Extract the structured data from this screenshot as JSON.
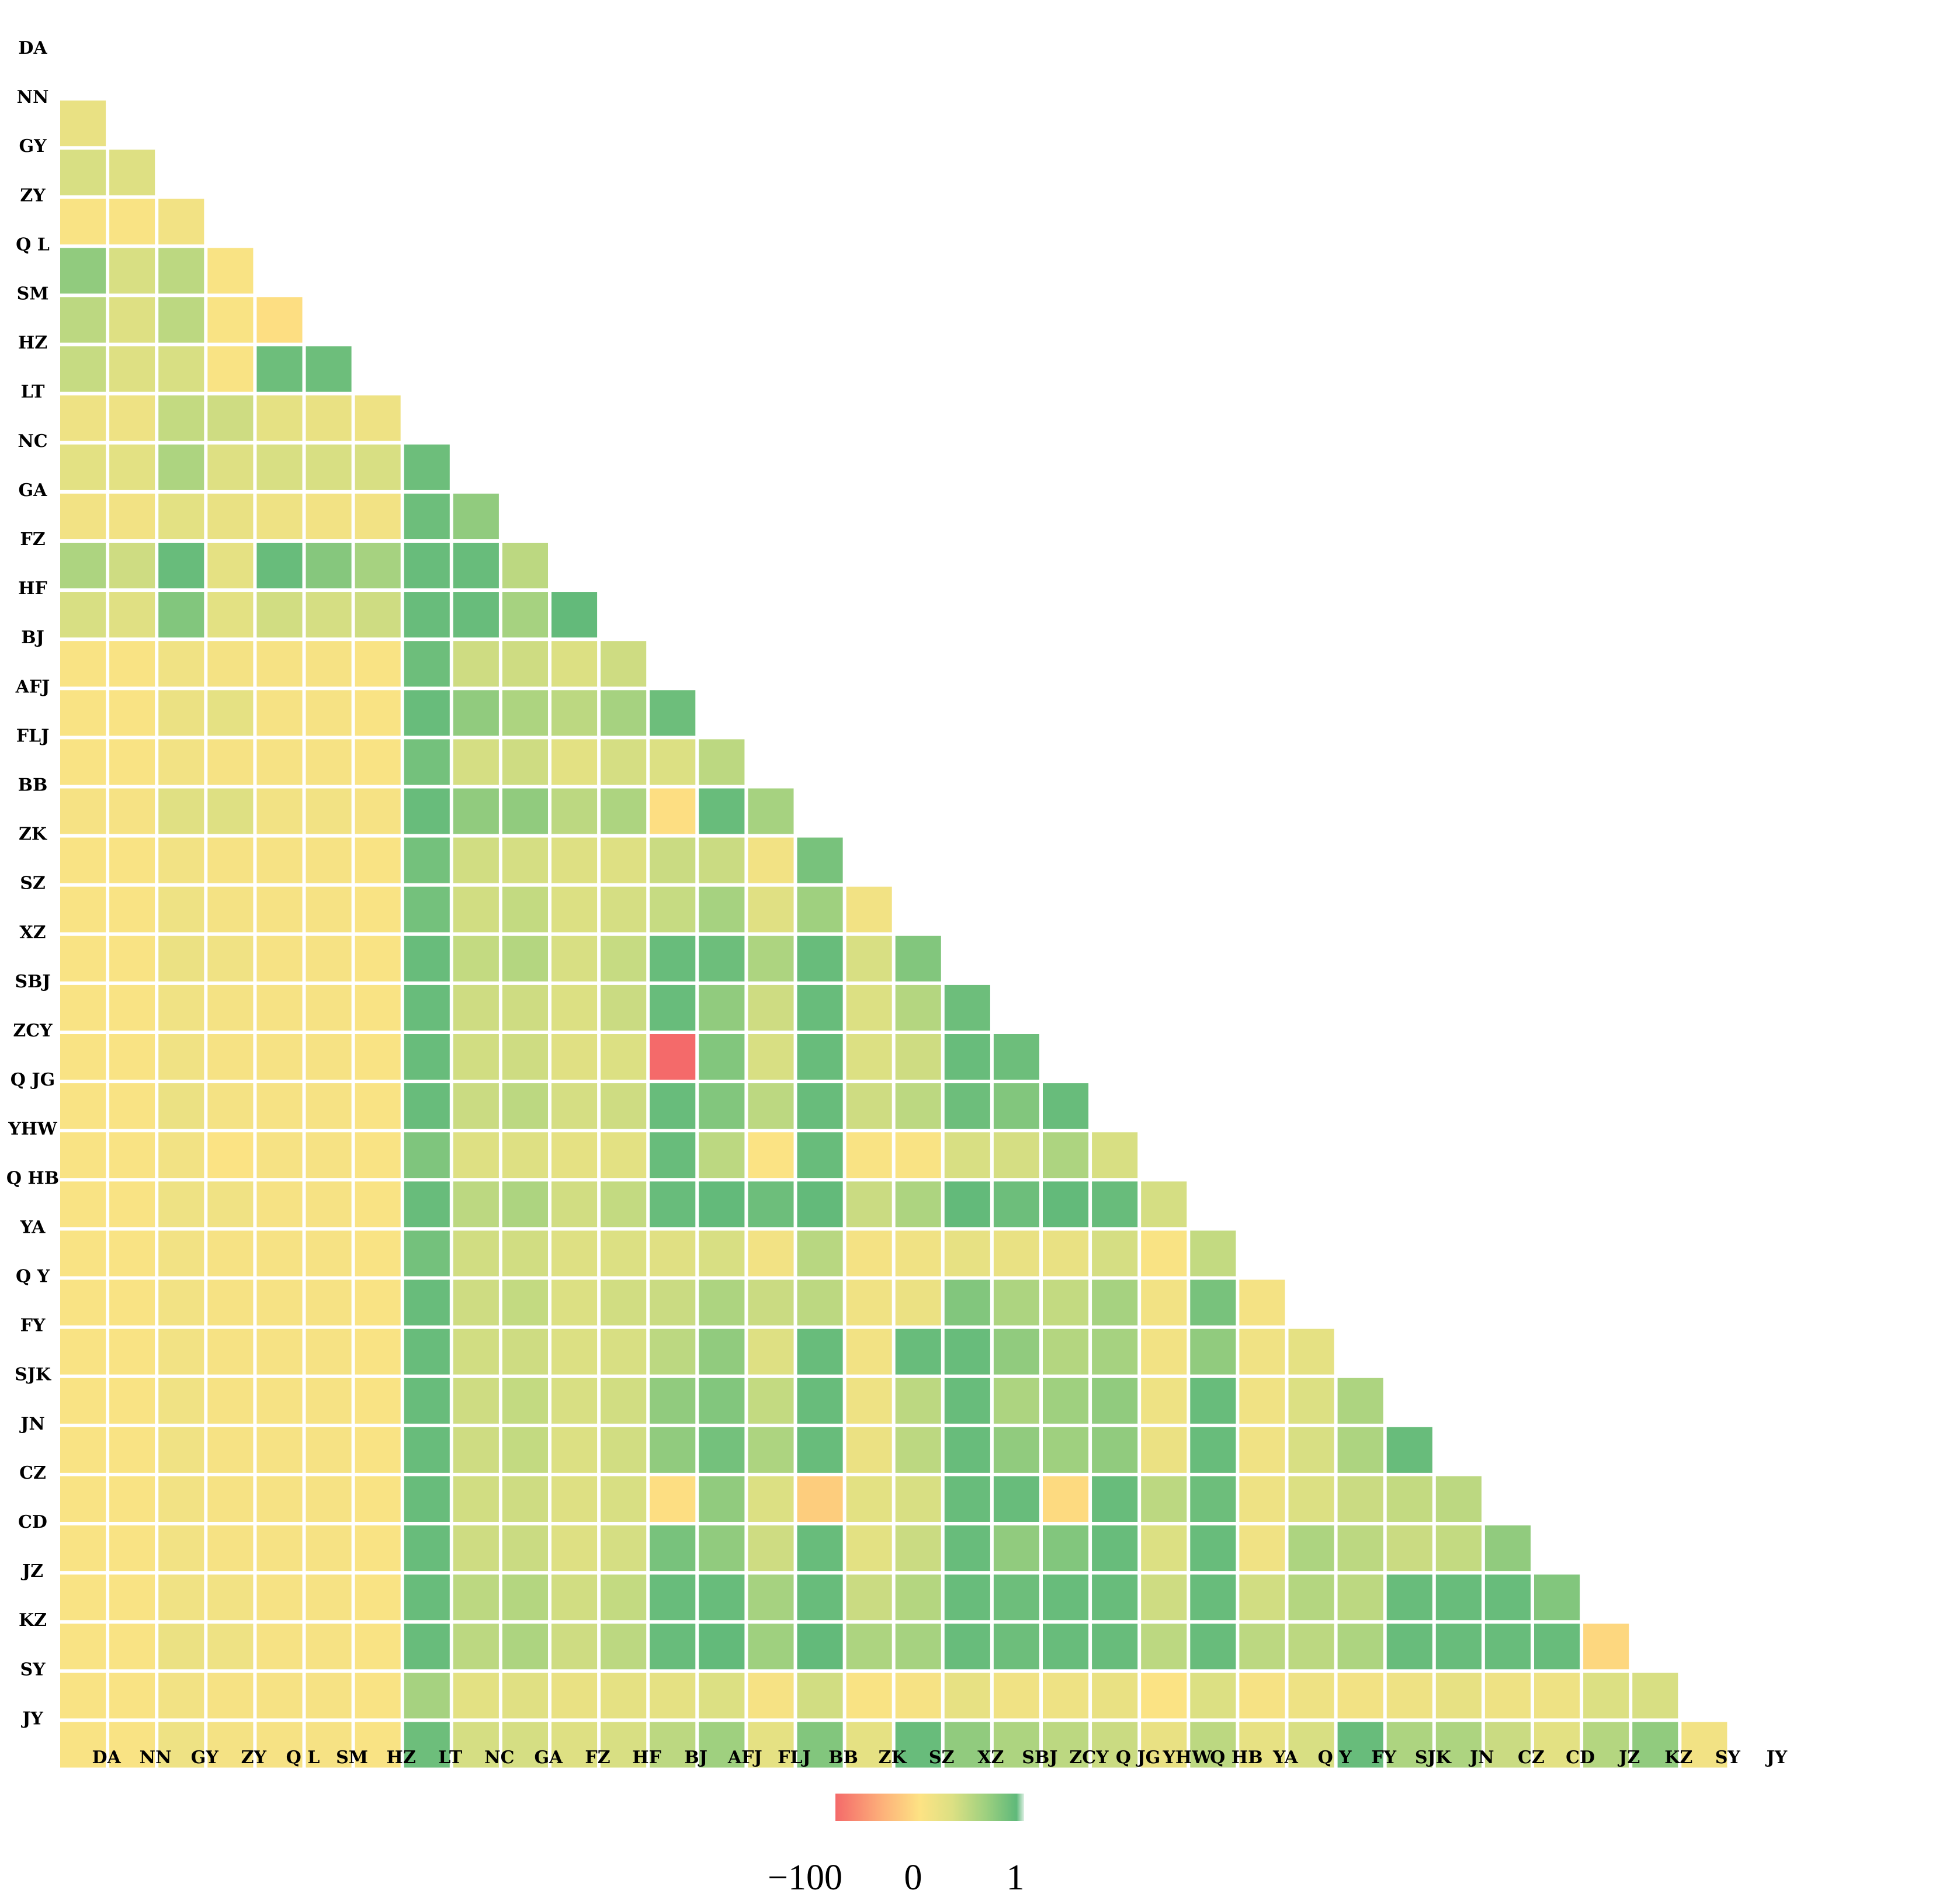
{
  "chart_data": {
    "type": "heatmap",
    "layout": "lower-triangle",
    "cell_gap_color": "#ffffff",
    "row_labels": [
      "DA",
      "NN",
      "GY",
      "ZY",
      "Q L",
      "SM",
      "HZ",
      "LT",
      "NC",
      "GA",
      "FZ",
      "HF",
      "BJ",
      "AFJ",
      "FLJ",
      "BB",
      "ZK",
      "SZ",
      "XZ",
      "SBJ",
      "ZCY",
      "Q JG",
      "YHW",
      "Q HB",
      "YA",
      "Q Y",
      "FY",
      "SJK",
      "JN",
      "CZ",
      "CD",
      "JZ",
      "KZ",
      "SY",
      "JY"
    ],
    "col_labels": [
      "DA",
      "NN",
      "GY",
      "ZY",
      "Q L",
      "SM",
      "HZ",
      "LT",
      "NC",
      "GA",
      "FZ",
      "HF",
      "BJ",
      "AFJ",
      "FLJ",
      "BB",
      "ZK",
      "SZ",
      "XZ",
      "SBJ",
      "ZCY",
      "Q JG",
      "YHW",
      "Q HB",
      "YA",
      "Q Y",
      "FY",
      "SJK",
      "JN",
      "CZ",
      "CD",
      "JZ",
      "KZ",
      "SY",
      "JY"
    ],
    "values": [
      [],
      [
        0.18
      ],
      [
        0.32,
        0.28
      ],
      [
        0.04,
        0.04,
        0.1
      ],
      [
        0.72,
        0.32,
        0.48,
        0.04
      ],
      [
        0.48,
        0.28,
        0.48,
        0.04,
        -8
      ],
      [
        0.42,
        0.28,
        0.32,
        0.04,
        0.92,
        0.92
      ],
      [
        0.14,
        0.14,
        0.44,
        0.38,
        0.22,
        0.18,
        0.14
      ],
      [
        0.24,
        0.24,
        0.56,
        0.28,
        0.32,
        0.32,
        0.32,
        0.92
      ],
      [
        0.1,
        0.1,
        0.24,
        0.18,
        0.14,
        0.1,
        0.1,
        0.92,
        0.72
      ],
      [
        0.56,
        0.38,
        0.95,
        0.22,
        0.95,
        0.78,
        0.6,
        0.95,
        0.95,
        0.48
      ],
      [
        0.32,
        0.26,
        0.8,
        0.24,
        0.36,
        0.34,
        0.38,
        0.95,
        0.95,
        0.6,
        0.98
      ],
      [
        0.04,
        0.04,
        0.12,
        0.08,
        0.06,
        0.06,
        0.04,
        0.92,
        0.38,
        0.38,
        0.3,
        0.38
      ],
      [
        0.04,
        0.04,
        0.16,
        0.22,
        0.06,
        0.06,
        0.04,
        0.95,
        0.72,
        0.56,
        0.48,
        0.6,
        0.92
      ],
      [
        0.04,
        0.04,
        0.1,
        0.06,
        0.06,
        0.06,
        0.04,
        0.88,
        0.34,
        0.38,
        0.24,
        0.34,
        0.3,
        0.48
      ],
      [
        0.06,
        0.06,
        0.26,
        0.28,
        0.1,
        0.1,
        0.06,
        0.95,
        0.72,
        0.72,
        0.48,
        0.56,
        -8,
        0.95,
        0.6
      ],
      [
        0.04,
        0.04,
        0.1,
        0.06,
        0.06,
        0.06,
        0.04,
        0.88,
        0.36,
        0.34,
        0.28,
        0.28,
        0.4,
        0.4,
        0.1,
        0.86
      ],
      [
        0.04,
        0.04,
        0.14,
        0.08,
        0.06,
        0.06,
        0.04,
        0.88,
        0.36,
        0.44,
        0.3,
        0.34,
        0.42,
        0.6,
        0.26,
        0.64,
        0.1
      ],
      [
        0.04,
        0.04,
        0.16,
        0.12,
        0.06,
        0.06,
        0.04,
        0.95,
        0.44,
        0.52,
        0.32,
        0.42,
        0.95,
        0.92,
        0.56,
        0.95,
        0.32,
        0.8
      ],
      [
        0.04,
        0.04,
        0.12,
        0.08,
        0.06,
        0.06,
        0.04,
        0.95,
        0.38,
        0.38,
        0.3,
        0.4,
        0.95,
        0.72,
        0.38,
        0.95,
        0.3,
        0.52,
        0.92
      ],
      [
        0.04,
        0.04,
        0.12,
        0.06,
        0.06,
        0.06,
        0.04,
        0.95,
        0.36,
        0.38,
        0.26,
        0.3,
        -100,
        0.8,
        0.32,
        0.95,
        0.3,
        0.38,
        0.95,
        0.92
      ],
      [
        0.04,
        0.04,
        0.16,
        0.08,
        0.06,
        0.06,
        0.04,
        0.95,
        0.4,
        0.48,
        0.34,
        0.38,
        0.95,
        0.8,
        0.48,
        0.95,
        0.38,
        0.48,
        0.92,
        0.8,
        0.95
      ],
      [
        0.04,
        0.04,
        0.1,
        0.02,
        0.06,
        0.06,
        0.04,
        0.82,
        0.28,
        0.28,
        0.22,
        0.24,
        0.95,
        0.48,
        0.02,
        0.95,
        0.04,
        0.04,
        0.32,
        0.34,
        0.56,
        0.32
      ],
      [
        0.04,
        0.04,
        0.14,
        0.12,
        0.06,
        0.06,
        0.04,
        0.95,
        0.48,
        0.56,
        0.36,
        0.44,
        0.95,
        0.98,
        0.92,
        0.98,
        0.4,
        0.56,
        0.98,
        0.92,
        0.98,
        0.95,
        0.34
      ],
      [
        0.04,
        0.04,
        0.1,
        0.06,
        0.06,
        0.06,
        0.04,
        0.88,
        0.36,
        0.36,
        0.28,
        0.3,
        0.26,
        0.32,
        0.1,
        0.5,
        0.08,
        0.12,
        0.2,
        0.18,
        0.18,
        0.34,
        0.04,
        0.44
      ],
      [
        0.04,
        0.04,
        0.1,
        0.06,
        0.06,
        0.06,
        0.04,
        0.95,
        0.38,
        0.44,
        0.3,
        0.36,
        0.4,
        0.56,
        0.4,
        0.48,
        0.12,
        0.16,
        0.8,
        0.56,
        0.44,
        0.6,
        0.1,
        0.86,
        0.08
      ],
      [
        0.04,
        0.04,
        0.1,
        0.06,
        0.06,
        0.06,
        0.04,
        0.95,
        0.36,
        0.38,
        0.3,
        0.32,
        0.48,
        0.72,
        0.28,
        0.95,
        0.1,
        0.95,
        0.95,
        0.72,
        0.52,
        0.6,
        0.1,
        0.72,
        0.12,
        0.22
      ],
      [
        0.04,
        0.04,
        0.12,
        0.06,
        0.06,
        0.06,
        0.04,
        0.95,
        0.38,
        0.44,
        0.32,
        0.36,
        0.72,
        0.8,
        0.44,
        0.95,
        0.14,
        0.48,
        0.95,
        0.56,
        0.64,
        0.72,
        0.14,
        0.95,
        0.12,
        0.3,
        0.56
      ],
      [
        0.04,
        0.04,
        0.12,
        0.06,
        0.06,
        0.06,
        0.04,
        0.95,
        0.38,
        0.44,
        0.3,
        0.36,
        0.72,
        0.88,
        0.56,
        0.95,
        0.16,
        0.48,
        0.95,
        0.72,
        0.64,
        0.72,
        0.16,
        0.95,
        0.12,
        0.32,
        0.56,
        0.95
      ],
      [
        0.04,
        0.04,
        0.1,
        0.06,
        0.06,
        0.06,
        0.04,
        0.95,
        0.36,
        0.38,
        0.28,
        0.32,
        -8,
        0.72,
        0.3,
        -30,
        0.24,
        0.32,
        0.95,
        0.95,
        -15,
        0.95,
        0.48,
        0.92,
        0.14,
        0.3,
        0.4,
        0.44,
        0.48
      ],
      [
        0.04,
        0.04,
        0.1,
        0.06,
        0.06,
        0.06,
        0.04,
        0.95,
        0.38,
        0.4,
        0.28,
        0.34,
        0.86,
        0.72,
        0.38,
        0.95,
        0.24,
        0.4,
        0.95,
        0.72,
        0.8,
        0.95,
        0.3,
        0.95,
        0.12,
        0.56,
        0.48,
        0.4,
        0.44,
        0.72
      ],
      [
        0.04,
        0.04,
        0.12,
        0.1,
        0.06,
        0.06,
        0.04,
        0.95,
        0.48,
        0.52,
        0.36,
        0.44,
        0.95,
        0.95,
        0.6,
        0.95,
        0.4,
        0.52,
        0.95,
        0.92,
        0.95,
        0.95,
        0.38,
        0.95,
        0.36,
        0.52,
        0.48,
        0.95,
        0.95,
        0.95,
        0.8
      ],
      [
        0.04,
        0.04,
        0.16,
        0.14,
        0.06,
        0.06,
        0.04,
        0.95,
        0.48,
        0.56,
        0.38,
        0.48,
        0.95,
        0.98,
        0.64,
        0.98,
        0.56,
        0.6,
        0.95,
        0.92,
        0.95,
        0.95,
        0.48,
        0.95,
        0.48,
        0.48,
        0.56,
        0.95,
        0.95,
        0.95,
        0.95,
        -20
      ],
      [
        0.04,
        0.04,
        0.1,
        0.06,
        0.06,
        0.06,
        0.04,
        0.6,
        0.24,
        0.26,
        0.18,
        0.22,
        0.22,
        0.3,
        0.06,
        0.36,
        0.04,
        0.06,
        0.2,
        0.12,
        0.14,
        0.18,
        0.02,
        0.3,
        0.06,
        0.14,
        0.1,
        0.14,
        0.2,
        0.14,
        0.14,
        0.3,
        0.32
      ],
      [
        0.04,
        0.04,
        0.14,
        0.08,
        0.06,
        0.06,
        0.04,
        0.92,
        0.34,
        0.34,
        0.28,
        0.32,
        0.48,
        0.64,
        0.22,
        0.8,
        0.22,
        0.95,
        0.72,
        0.56,
        0.48,
        0.4,
        0.18,
        0.48,
        0.2,
        0.32,
        0.95,
        0.56,
        0.56,
        0.4,
        0.24,
        0.52,
        0.72,
        0.1
      ]
    ],
    "color_scale": {
      "min": -100,
      "mid": 0,
      "max": 1,
      "tick_labels": [
        "−100",
        "0",
        "1"
      ],
      "stops": [
        "#f46a6a",
        "#fdd98a",
        "#f7e383",
        "#dce083",
        "#9dd07f",
        "#5fb97a"
      ]
    },
    "grid": false,
    "legend": "bottom-center"
  }
}
